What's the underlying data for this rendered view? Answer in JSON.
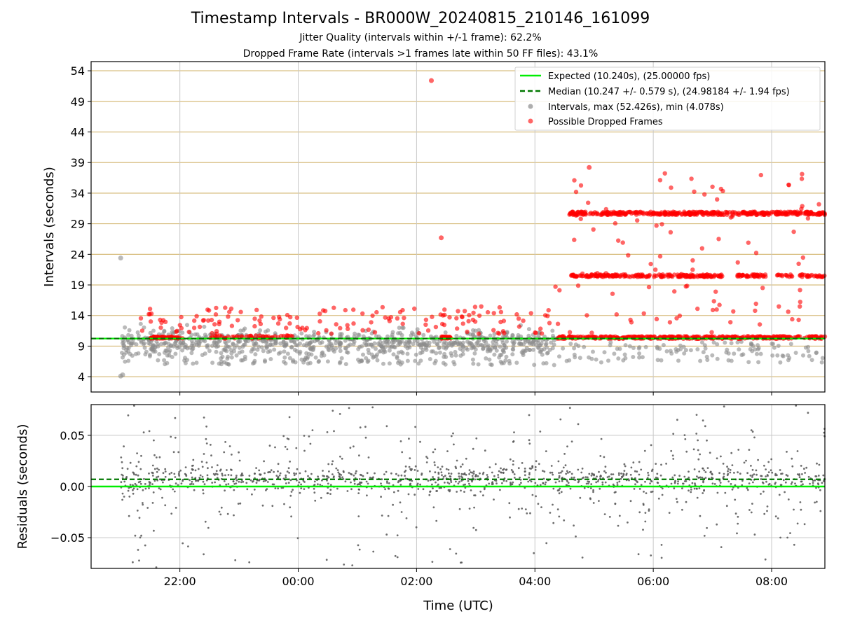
{
  "titles": {
    "main": "Timestamp Intervals - BR000W_20240815_210146_161099",
    "sub1": "Jitter Quality (intervals within +/-1 frame): 62.2%",
    "sub2": "Dropped Frame Rate (intervals >1 frames late within 50 FF files): 43.1%"
  },
  "colors": {
    "expected": "#00ee00",
    "median": "#007700",
    "intervals": "#8c8c8c",
    "dropped": "#ff0000",
    "h_grid": "#d2b46e",
    "grid": "#c8c8c8",
    "residual_points": "#555555"
  },
  "chart_data": [
    {
      "type": "scatter",
      "ylabel": "Intervals (seconds)",
      "ylim": [
        1.5,
        55.5
      ],
      "yticks": [
        4,
        9,
        14,
        19,
        24,
        29,
        34,
        39,
        44,
        49,
        54
      ],
      "xlim": [
        "20:30",
        "08:54"
      ],
      "xticks": [
        "22:00",
        "00:00",
        "02:00",
        "04:00",
        "06:00",
        "08:00"
      ],
      "grid": "on",
      "legend_position": "top-right",
      "legend": [
        "Expected (10.240s), (25.00000 fps)",
        "Median (10.247 +/- 0.579 s), (24.98184 +/- 1.94 fps)",
        "Intervals, max (52.426s), min (4.078s)",
        "Possible Dropped Frames"
      ],
      "expected_interval": 10.24,
      "median_interval": 10.247,
      "series": [
        {
          "name": "Intervals, max (52.426s), min (4.078s)",
          "note": "dense cloud 21:00–04:20 centered ~10.2 s, spread ~6–12 s; outliers 23.4 s at 21:00, 4.1 s at 21:00, 52.4 s max"
        },
        {
          "name": "Possible Dropped Frames",
          "note": "clusters at ~10.4 s (21:30–08:54), ~20.5 s and ~30.7 s (04:35–08:54), scattered 11–18 s before 04:20, max 52.4 s at 02:15"
        }
      ]
    },
    {
      "type": "scatter",
      "xlabel": "Time (UTC)",
      "ylabel": "Residuals (seconds)",
      "ylim": [
        -0.08,
        0.08
      ],
      "yticks": [
        "0.05",
        "0.00",
        "−0.05"
      ],
      "ytick_values": [
        0.05,
        0.0,
        -0.05
      ],
      "expected_residual": 0.0,
      "median_residual": 0.007,
      "grid": "on"
    }
  ]
}
